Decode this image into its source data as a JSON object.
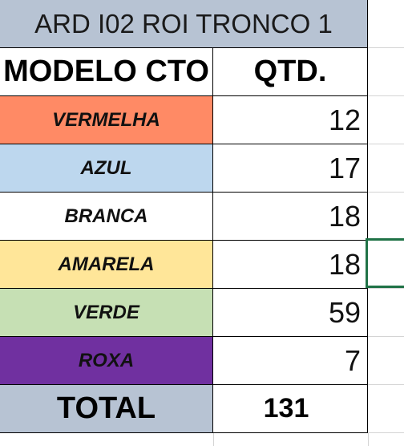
{
  "sheet": {
    "title": "ARD I02 ROI TRONCO 1",
    "header": {
      "model_label": "MODELO CTO",
      "qty_label": "QTD."
    },
    "rows": [
      {
        "name": "VERMELHA",
        "qty": "12",
        "color": "#ff8a65"
      },
      {
        "name": "AZUL",
        "qty": "17",
        "color": "#bdd7ee"
      },
      {
        "name": "BRANCA",
        "qty": "18",
        "color": "#ffffff"
      },
      {
        "name": "AMARELA",
        "qty": "18",
        "color": "#ffe699"
      },
      {
        "name": "VERDE",
        "qty": "59",
        "color": "#c6e0b4"
      },
      {
        "name": "ROXA",
        "qty": "7",
        "color": "#7030a0"
      }
    ],
    "total": {
      "label": "TOTAL",
      "value": "131"
    },
    "title_fill": "#b7c3d3",
    "selection_color": "#1f7246"
  }
}
